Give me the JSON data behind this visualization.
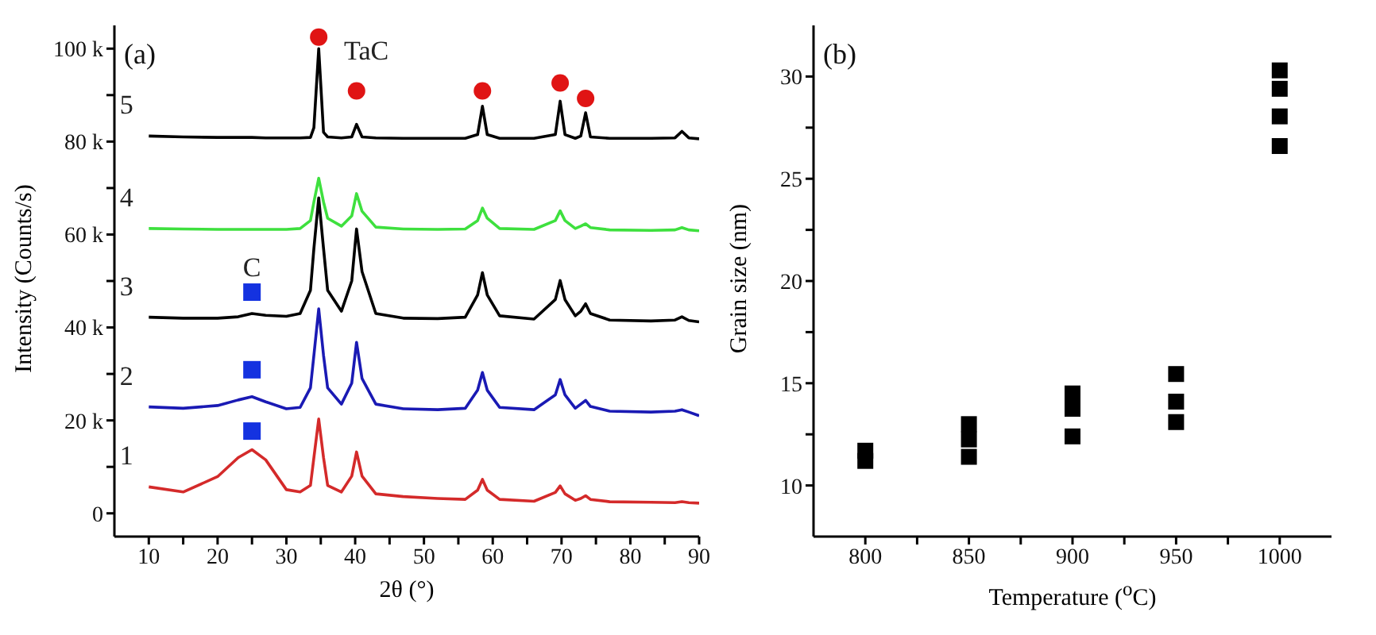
{
  "chart_data": [
    {
      "type": "line",
      "xlabel": "2θ (°)",
      "ylabel": "Intensity (Counts/s)",
      "annotations": [
        "(a)"
      ],
      "x": [
        10,
        15,
        20,
        23,
        25,
        27,
        30,
        32,
        33.5,
        34,
        34.7,
        35.4,
        36,
        38,
        39.5,
        40.2,
        41,
        43,
        47,
        52,
        56,
        57.8,
        58.5,
        59.2,
        61,
        66,
        69.1,
        69.8,
        70.5,
        72,
        72.8,
        73.5,
        74.2,
        77,
        83,
        86.5,
        87.5,
        88.5,
        90
      ],
      "xlim": [
        5,
        90
      ],
      "xticks": [
        10,
        {
          "value": 15,
          "label": null
        },
        20,
        {
          "value": 25,
          "label": null
        },
        30,
        {
          "value": 35,
          "label": null
        },
        40,
        {
          "value": 45,
          "label": null
        },
        50,
        {
          "value": 55,
          "label": null
        },
        60,
        {
          "value": 65,
          "label": null
        },
        70,
        {
          "value": 75,
          "label": null
        },
        80,
        {
          "value": 85,
          "label": null
        },
        90
      ],
      "ylim": [
        -5000,
        105000
      ],
      "yticks": [
        0,
        {
          "value": 10000,
          "label": null
        },
        {
          "value": 20000,
          "label": "20 k"
        },
        {
          "value": 30000,
          "label": null
        },
        {
          "value": 40000,
          "label": "40 k"
        },
        {
          "value": 50000,
          "label": null
        },
        {
          "value": 60000,
          "label": "60 k"
        },
        {
          "value": 70000,
          "label": null
        },
        {
          "value": 80000,
          "label": "80 k"
        },
        {
          "value": 90000,
          "label": null
        },
        {
          "value": 100000,
          "label": "100 k"
        }
      ],
      "grid": false,
      "legend": false,
      "series": [
        {
          "name": "1",
          "color": "#d42a2a",
          "values": [
            5700,
            4600,
            7900,
            12000,
            13700,
            11500,
            5100,
            4600,
            6000,
            12000,
            20300,
            12000,
            6000,
            4600,
            8000,
            13200,
            8000,
            4200,
            3600,
            3200,
            3000,
            5000,
            7300,
            5000,
            3000,
            2600,
            4500,
            5900,
            4200,
            2800,
            3200,
            3800,
            3000,
            2500,
            2400,
            2300,
            2500,
            2300,
            2200
          ]
        },
        {
          "name": "2",
          "color": "#1a1ab4",
          "values": [
            22900,
            22600,
            23200,
            24400,
            25100,
            24000,
            22500,
            22800,
            27000,
            34000,
            44000,
            34000,
            27000,
            23500,
            28000,
            36800,
            29000,
            23500,
            22500,
            22300,
            22600,
            26500,
            30300,
            26500,
            22800,
            22300,
            25500,
            28800,
            25500,
            22600,
            23500,
            24300,
            23000,
            22000,
            21800,
            22000,
            22300,
            21800,
            21000
          ]
        },
        {
          "name": "3",
          "color": "#000000",
          "values": [
            42200,
            42000,
            42000,
            42300,
            43000,
            42600,
            42400,
            43000,
            48000,
            57000,
            67900,
            57000,
            48000,
            43500,
            50000,
            61200,
            52000,
            43000,
            42000,
            41900,
            42200,
            47000,
            51800,
            47000,
            42500,
            41800,
            46000,
            50100,
            46000,
            42500,
            43500,
            45100,
            43000,
            41600,
            41400,
            41600,
            42300,
            41500,
            41200
          ]
        },
        {
          "name": "4",
          "color": "#3ee03e",
          "values": [
            61300,
            61200,
            61100,
            61100,
            61100,
            61100,
            61100,
            61300,
            63000,
            67000,
            72100,
            67000,
            63500,
            61800,
            64000,
            68800,
            65000,
            61600,
            61200,
            61100,
            61200,
            63000,
            65700,
            63500,
            61300,
            61100,
            63000,
            65100,
            63000,
            61300,
            61800,
            62300,
            61500,
            61000,
            60900,
            61000,
            61500,
            61000,
            60800
          ]
        },
        {
          "name": "5",
          "color": "#000000",
          "values": [
            81200,
            81000,
            80900,
            80900,
            80900,
            80800,
            80800,
            80800,
            80900,
            83000,
            100000,
            82000,
            81000,
            80800,
            81000,
            83700,
            81000,
            80800,
            80700,
            80700,
            80700,
            81500,
            87600,
            81500,
            80700,
            80700,
            81500,
            88700,
            81500,
            80700,
            81200,
            86200,
            81000,
            80700,
            80700,
            80800,
            82200,
            80800,
            80600
          ]
        },
        {
          "name": "TaC",
          "type": "scatter",
          "marker": "circle",
          "color": "#e01414",
          "x": [
            34.7,
            40.2,
            58.5,
            69.8,
            73.5
          ],
          "values": [
            102500,
            90900,
            90900,
            92600,
            89300
          ]
        },
        {
          "name": "C",
          "type": "scatter",
          "marker": "square",
          "color": "#1432e0",
          "x": [
            25,
            25,
            25
          ],
          "values": [
            17700,
            30900,
            47600
          ]
        }
      ]
    },
    {
      "type": "scatter",
      "xlabel": "Temperature ($^{o}$C)",
      "ylabel": "Grain size (nm)",
      "annotations": [
        "(b)"
      ],
      "marker": "square",
      "color": "#000000",
      "x": [
        800,
        800,
        850,
        850,
        850,
        900,
        900,
        900,
        950,
        950,
        950,
        1000,
        1000,
        1000,
        1000
      ],
      "values": [
        11.2,
        11.7,
        13,
        12.25,
        11.4,
        14.5,
        13.75,
        12.4,
        15.45,
        14.1,
        13.1,
        30.3,
        29.4,
        28.05,
        26.6
      ],
      "xlim": [
        775,
        1025
      ],
      "xticks": [
        800,
        {
          "value": 825,
          "label": null
        },
        850,
        {
          "value": 875,
          "label": null
        },
        900,
        {
          "value": 925,
          "label": null
        },
        950,
        {
          "value": 975,
          "label": null
        },
        1000
      ],
      "ylim": [
        7.5,
        32.5
      ],
      "yticks": [
        10,
        {
          "value": 12.5,
          "label": null
        },
        15,
        {
          "value": 17.5,
          "label": null
        },
        20,
        {
          "value": 22.5,
          "label": null
        },
        25,
        {
          "value": 27.5,
          "label": null
        },
        30
      ],
      "grid": false,
      "legend": false
    }
  ]
}
